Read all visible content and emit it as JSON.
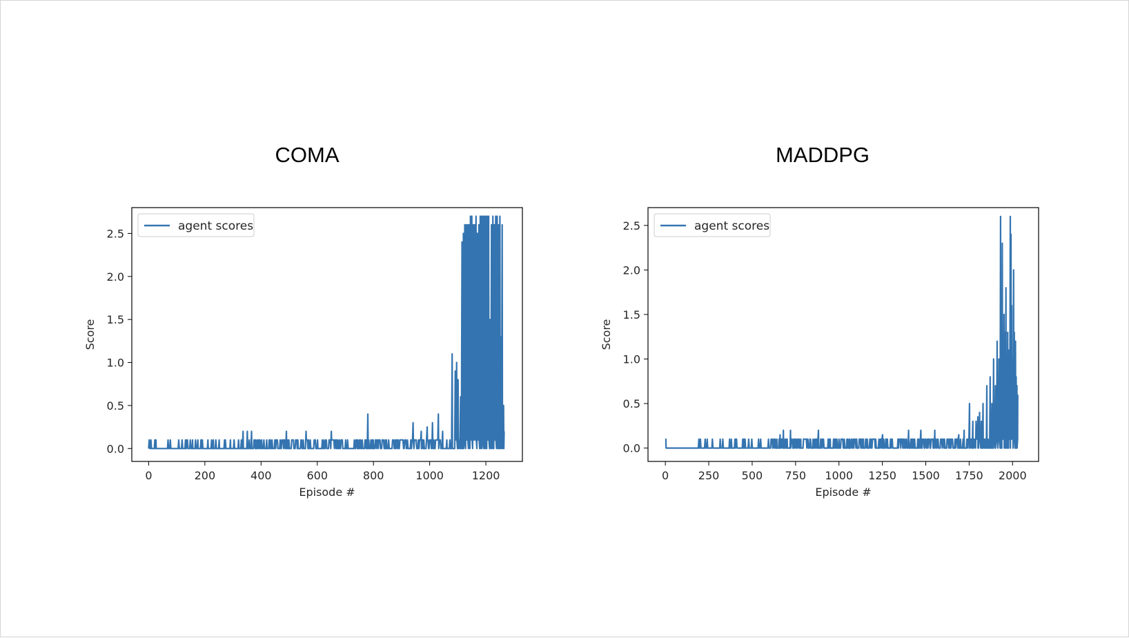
{
  "charts": [
    {
      "panel_title": "COMA",
      "chart_data": {
        "type": "line",
        "title": "",
        "xlabel": "Episode #",
        "ylabel": "Score",
        "xlim": [
          -60,
          1330
        ],
        "ylim": [
          -0.15,
          2.8
        ],
        "xticks": [
          0,
          200,
          400,
          600,
          800,
          1000,
          1200
        ],
        "yticks": [
          0.0,
          0.5,
          1.0,
          1.5,
          2.0,
          2.5
        ],
        "ytick_labels": [
          "0.0",
          "0.5",
          "1.0",
          "1.5",
          "2.0",
          "2.5"
        ],
        "grid": false,
        "legend_position": "upper-left",
        "series": [
          {
            "name": "agent scores",
            "color": "#3474b0",
            "x_end": 1265,
            "spikes": [
              [
                25,
                0.1
              ],
              [
                130,
                0.1
              ],
              [
                155,
                0.1
              ],
              [
                175,
                0.1
              ],
              [
                185,
                0.1
              ],
              [
                210,
                0.1
              ],
              [
                230,
                0.1
              ],
              [
                250,
                0.1
              ],
              [
                270,
                0.1
              ],
              [
                290,
                0.1
              ],
              [
                335,
                0.2
              ],
              [
                350,
                0.2
              ],
              [
                365,
                0.2
              ],
              [
                395,
                0.1
              ],
              [
                420,
                0.1
              ],
              [
                450,
                0.1
              ],
              [
                490,
                0.2
              ],
              [
                530,
                0.1
              ],
              [
                560,
                0.2
              ],
              [
                600,
                0.1
              ],
              [
                650,
                0.2
              ],
              [
                700,
                0.1
              ],
              [
                780,
                0.4
              ],
              [
                830,
                0.1
              ],
              [
                900,
                0.1
              ],
              [
                940,
                0.3
              ],
              [
                970,
                0.2
              ],
              [
                990,
                0.25
              ],
              [
                1010,
                0.3
              ],
              [
                1030,
                0.4
              ],
              [
                1045,
                0.2
              ],
              [
                1060,
                0.1
              ],
              [
                1080,
                1.1
              ],
              [
                1090,
                0.9
              ],
              [
                1095,
                1.0
              ],
              [
                1100,
                0.8
              ],
              [
                1110,
                0.6
              ],
              [
                1115,
                2.4
              ],
              [
                1120,
                2.5
              ],
              [
                1125,
                2.6
              ],
              [
                1130,
                2.6
              ],
              [
                1135,
                2.6
              ],
              [
                1140,
                2.6
              ],
              [
                1145,
                2.7
              ],
              [
                1150,
                2.7
              ],
              [
                1155,
                2.6
              ],
              [
                1160,
                2.6
              ],
              [
                1165,
                2.7
              ],
              [
                1170,
                2.5
              ],
              [
                1175,
                2.6
              ],
              [
                1180,
                2.7
              ],
              [
                1185,
                2.7
              ],
              [
                1190,
                2.7
              ],
              [
                1195,
                2.7
              ],
              [
                1200,
                2.7
              ],
              [
                1205,
                2.7
              ],
              [
                1210,
                2.7
              ],
              [
                1215,
                1.5
              ],
              [
                1220,
                2.6
              ],
              [
                1225,
                2.7
              ],
              [
                1230,
                2.6
              ],
              [
                1235,
                2.7
              ],
              [
                1240,
                2.7
              ],
              [
                1245,
                2.6
              ],
              [
                1250,
                2.7
              ],
              [
                1255,
                1.3
              ],
              [
                1258,
                2.6
              ],
              [
                1262,
                0.5
              ]
            ],
            "base": 0.0,
            "end_value": 0.2
          }
        ]
      }
    },
    {
      "panel_title": "MADDPG",
      "chart_data": {
        "type": "line",
        "title": "",
        "xlabel": "Episode #",
        "ylabel": "Score",
        "xlim": [
          -100,
          2150
        ],
        "ylim": [
          -0.15,
          2.7
        ],
        "xticks": [
          0,
          250,
          500,
          750,
          1000,
          1250,
          1500,
          1750,
          2000
        ],
        "yticks": [
          0.0,
          0.5,
          1.0,
          1.5,
          2.0,
          2.5
        ],
        "ytick_labels": [
          "0.0",
          "0.5",
          "1.0",
          "1.5",
          "2.0",
          "2.5"
        ],
        "grid": false,
        "legend_position": "upper-left",
        "series": [
          {
            "name": "agent scores",
            "color": "#3474b0",
            "x_end": 2030,
            "spikes": [
              [
                2,
                0.1
              ],
              [
                370,
                0.1
              ],
              [
                450,
                0.1
              ],
              [
                640,
                0.1
              ],
              [
                660,
                0.15
              ],
              [
                680,
                0.2
              ],
              [
                700,
                0.1
              ],
              [
                720,
                0.2
              ],
              [
                740,
                0.1
              ],
              [
                780,
                0.1
              ],
              [
                800,
                0.1
              ],
              [
                860,
                0.1
              ],
              [
                880,
                0.2
              ],
              [
                910,
                0.1
              ],
              [
                950,
                0.1
              ],
              [
                970,
                0.1
              ],
              [
                1020,
                0.1
              ],
              [
                1060,
                0.1
              ],
              [
                1100,
                0.1
              ],
              [
                1140,
                0.1
              ],
              [
                1200,
                0.1
              ],
              [
                1250,
                0.15
              ],
              [
                1300,
                0.1
              ],
              [
                1350,
                0.1
              ],
              [
                1400,
                0.2
              ],
              [
                1430,
                0.1
              ],
              [
                1470,
                0.2
              ],
              [
                1500,
                0.1
              ],
              [
                1550,
                0.2
              ],
              [
                1600,
                0.1
              ],
              [
                1640,
                0.1
              ],
              [
                1690,
                0.15
              ],
              [
                1720,
                0.2
              ],
              [
                1750,
                0.5
              ],
              [
                1770,
                0.3
              ],
              [
                1790,
                0.3
              ],
              [
                1800,
                0.35
              ],
              [
                1810,
                0.4
              ],
              [
                1820,
                0.3
              ],
              [
                1830,
                0.5
              ],
              [
                1850,
                0.7
              ],
              [
                1870,
                0.8
              ],
              [
                1880,
                0.5
              ],
              [
                1890,
                1.0
              ],
              [
                1900,
                0.7
              ],
              [
                1910,
                1.2
              ],
              [
                1920,
                1.0
              ],
              [
                1930,
                2.6
              ],
              [
                1940,
                2.3
              ],
              [
                1950,
                1.5
              ],
              [
                1955,
                1.3
              ],
              [
                1960,
                1.8
              ],
              [
                1970,
                1.3
              ],
              [
                1975,
                1.0
              ],
              [
                1980,
                1.1
              ],
              [
                1985,
                2.6
              ],
              [
                1990,
                2.4
              ],
              [
                1995,
                1.6
              ],
              [
                2000,
                1.0
              ],
              [
                2005,
                2.0
              ],
              [
                2010,
                1.3
              ],
              [
                2015,
                1.2
              ],
              [
                2020,
                0.8
              ],
              [
                2025,
                0.7
              ]
            ],
            "base": 0.0,
            "end_value": 0.6
          }
        ]
      }
    }
  ]
}
